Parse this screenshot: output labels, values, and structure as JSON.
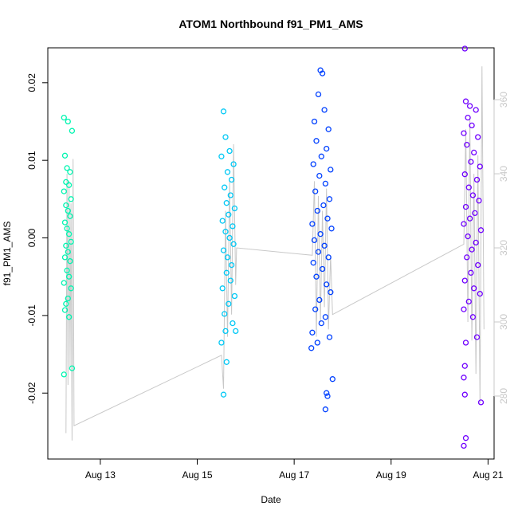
{
  "chart_data": {
    "type": "scatter",
    "title": "ATOM1 Northbound f91_PM1_AMS",
    "xlabel": "Date",
    "ylabel": "f91_PM1_AMS",
    "xlim": [
      "2012-08-11T22:00",
      "2012-08-21T03:00"
    ],
    "ylim": [
      -0.0285,
      0.0245
    ],
    "y2lim": [
      263,
      374
    ],
    "x_ticks": [
      {
        "label": "Aug 13",
        "date": "2012-08-13"
      },
      {
        "label": "Aug 15",
        "date": "2012-08-15"
      },
      {
        "label": "Aug 17",
        "date": "2012-08-17"
      },
      {
        "label": "Aug 19",
        "date": "2012-08-19"
      },
      {
        "label": "Aug 21",
        "date": "2012-08-21"
      }
    ],
    "y_ticks": [
      -0.02,
      -0.01,
      0.0,
      0.01,
      0.02
    ],
    "y_tick_labels": [
      "-0.02",
      "-0.01",
      "0.00",
      "0.01",
      "0.02"
    ],
    "y2_ticks": [
      280,
      300,
      320,
      340,
      360
    ],
    "y2_tick_labels": [
      "280",
      "300",
      "320",
      "340",
      "360"
    ],
    "grid": false,
    "legend": "none",
    "series": [
      {
        "color": "#00f5b0",
        "points": [
          [
            "2012-08-12T06:00",
            0.0155
          ],
          [
            "2012-08-12T08:00",
            0.015
          ],
          [
            "2012-08-12T10:00",
            0.0138
          ],
          [
            "2012-08-12T06:30",
            0.0106
          ],
          [
            "2012-08-12T07:30",
            0.009
          ],
          [
            "2012-08-12T09:00",
            0.0085
          ],
          [
            "2012-08-12T07:00",
            0.0072
          ],
          [
            "2012-08-12T08:30",
            0.0068
          ],
          [
            "2012-08-12T06:00",
            0.006
          ],
          [
            "2012-08-12T09:30",
            0.005
          ],
          [
            "2012-08-12T07:00",
            0.0042
          ],
          [
            "2012-08-12T08:00",
            0.0035
          ],
          [
            "2012-08-12T09:00",
            0.0028
          ],
          [
            "2012-08-12T06:30",
            0.002
          ],
          [
            "2012-08-12T07:30",
            0.0012
          ],
          [
            "2012-08-12T08:30",
            0.0005
          ],
          [
            "2012-08-12T09:30",
            -0.0005
          ],
          [
            "2012-08-12T07:00",
            -0.001
          ],
          [
            "2012-08-12T08:00",
            -0.0018
          ],
          [
            "2012-08-12T06:30",
            -0.0025
          ],
          [
            "2012-08-12T09:00",
            -0.003
          ],
          [
            "2012-08-12T07:30",
            -0.0042
          ],
          [
            "2012-08-12T08:30",
            -0.005
          ],
          [
            "2012-08-12T06:00",
            -0.0058
          ],
          [
            "2012-08-12T09:30",
            -0.0065
          ],
          [
            "2012-08-12T08:00",
            -0.0078
          ],
          [
            "2012-08-12T07:00",
            -0.0085
          ],
          [
            "2012-08-12T06:30",
            -0.0093
          ],
          [
            "2012-08-12T08:30",
            -0.0102
          ],
          [
            "2012-08-12T06:00",
            -0.0176
          ],
          [
            "2012-08-12T10:00",
            -0.0168
          ]
        ]
      },
      {
        "color": "#00c8f5",
        "points": [
          [
            "2012-08-15T13:00",
            0.0163
          ],
          [
            "2012-08-15T14:00",
            0.013
          ],
          [
            "2012-08-15T16:00",
            0.0112
          ],
          [
            "2012-08-15T12:00",
            0.0105
          ],
          [
            "2012-08-15T18:00",
            0.0095
          ],
          [
            "2012-08-15T15:00",
            0.0085
          ],
          [
            "2012-08-15T17:00",
            0.0075
          ],
          [
            "2012-08-15T13:30",
            0.0065
          ],
          [
            "2012-08-15T16:30",
            0.0055
          ],
          [
            "2012-08-15T14:30",
            0.0045
          ],
          [
            "2012-08-15T18:30",
            0.0038
          ],
          [
            "2012-08-15T15:30",
            0.003
          ],
          [
            "2012-08-15T12:30",
            0.0022
          ],
          [
            "2012-08-15T17:30",
            0.0015
          ],
          [
            "2012-08-15T14:00",
            0.0008
          ],
          [
            "2012-08-15T16:00",
            0.0
          ],
          [
            "2012-08-15T18:00",
            -0.0008
          ],
          [
            "2012-08-15T13:00",
            -0.0016
          ],
          [
            "2012-08-15T15:00",
            -0.0025
          ],
          [
            "2012-08-15T17:00",
            -0.0035
          ],
          [
            "2012-08-15T14:30",
            -0.0045
          ],
          [
            "2012-08-15T16:30",
            -0.0055
          ],
          [
            "2012-08-15T12:30",
            -0.0065
          ],
          [
            "2012-08-15T18:30",
            -0.0075
          ],
          [
            "2012-08-15T15:30",
            -0.0085
          ],
          [
            "2012-08-15T13:30",
            -0.0098
          ],
          [
            "2012-08-15T17:30",
            -0.011
          ],
          [
            "2012-08-15T14:00",
            -0.012
          ],
          [
            "2012-08-15T12:00",
            -0.0135
          ],
          [
            "2012-08-15T14:30",
            -0.016
          ],
          [
            "2012-08-15T13:00",
            -0.0202
          ],
          [
            "2012-08-15T19:00",
            -0.012
          ]
        ]
      },
      {
        "color": "#0040ff",
        "points": [
          [
            "2012-08-17T13:00",
            0.0216
          ],
          [
            "2012-08-17T14:00",
            0.0212
          ],
          [
            "2012-08-17T12:00",
            0.0185
          ],
          [
            "2012-08-17T15:00",
            0.0165
          ],
          [
            "2012-08-17T10:00",
            0.015
          ],
          [
            "2012-08-17T17:00",
            0.014
          ],
          [
            "2012-08-17T11:00",
            0.0125
          ],
          [
            "2012-08-17T16:00",
            0.0115
          ],
          [
            "2012-08-17T13:30",
            0.0105
          ],
          [
            "2012-08-17T09:30",
            0.0095
          ],
          [
            "2012-08-17T18:00",
            0.0088
          ],
          [
            "2012-08-17T12:30",
            0.008
          ],
          [
            "2012-08-17T15:30",
            0.007
          ],
          [
            "2012-08-17T10:30",
            0.006
          ],
          [
            "2012-08-17T17:30",
            0.005
          ],
          [
            "2012-08-17T14:30",
            0.0042
          ],
          [
            "2012-08-17T11:30",
            0.0035
          ],
          [
            "2012-08-17T16:30",
            0.0025
          ],
          [
            "2012-08-17T09:00",
            0.0018
          ],
          [
            "2012-08-17T18:30",
            0.0012
          ],
          [
            "2012-08-17T13:00",
            0.0005
          ],
          [
            "2012-08-17T10:00",
            -0.0003
          ],
          [
            "2012-08-17T15:00",
            -0.001
          ],
          [
            "2012-08-17T12:00",
            -0.0018
          ],
          [
            "2012-08-17T17:00",
            -0.0025
          ],
          [
            "2012-08-17T09:30",
            -0.0032
          ],
          [
            "2012-08-17T14:00",
            -0.004
          ],
          [
            "2012-08-17T11:00",
            -0.005
          ],
          [
            "2012-08-17T16:00",
            -0.006
          ],
          [
            "2012-08-17T18:00",
            -0.007
          ],
          [
            "2012-08-17T12:30",
            -0.008
          ],
          [
            "2012-08-17T10:30",
            -0.0092
          ],
          [
            "2012-08-17T15:30",
            -0.0102
          ],
          [
            "2012-08-17T13:30",
            -0.011
          ],
          [
            "2012-08-17T09:00",
            -0.0122
          ],
          [
            "2012-08-17T11:30",
            -0.0135
          ],
          [
            "2012-08-17T17:30",
            -0.0128
          ],
          [
            "2012-08-17T08:30",
            -0.0142
          ],
          [
            "2012-08-17T19:00",
            -0.0182
          ],
          [
            "2012-08-17T16:00",
            -0.02
          ],
          [
            "2012-08-17T16:30",
            -0.0204
          ],
          [
            "2012-08-17T15:30",
            -0.0221
          ]
        ]
      },
      {
        "color": "#7000ff",
        "points": [
          [
            "2012-08-20T12:30",
            0.0244
          ],
          [
            "2012-08-20T13:00",
            0.0176
          ],
          [
            "2012-08-20T15:00",
            0.017
          ],
          [
            "2012-08-20T18:00",
            0.0165
          ],
          [
            "2012-08-20T14:00",
            0.0155
          ],
          [
            "2012-08-20T16:00",
            0.0145
          ],
          [
            "2012-08-20T12:00",
            0.0135
          ],
          [
            "2012-08-20T19:00",
            0.013
          ],
          [
            "2012-08-20T13:30",
            0.012
          ],
          [
            "2012-08-20T17:00",
            0.011
          ],
          [
            "2012-08-20T15:30",
            0.0098
          ],
          [
            "2012-08-20T20:00",
            0.0092
          ],
          [
            "2012-08-20T12:30",
            0.0082
          ],
          [
            "2012-08-20T18:30",
            0.0075
          ],
          [
            "2012-08-20T14:30",
            0.0065
          ],
          [
            "2012-08-20T16:30",
            0.0055
          ],
          [
            "2012-08-20T19:30",
            0.0048
          ],
          [
            "2012-08-20T13:00",
            0.004
          ],
          [
            "2012-08-20T17:30",
            0.0032
          ],
          [
            "2012-08-20T15:00",
            0.0025
          ],
          [
            "2012-08-20T12:00",
            0.0018
          ],
          [
            "2012-08-20T20:30",
            0.001
          ],
          [
            "2012-08-20T14:00",
            0.0002
          ],
          [
            "2012-08-20T18:00",
            -0.0006
          ],
          [
            "2012-08-20T16:00",
            -0.0015
          ],
          [
            "2012-08-20T13:30",
            -0.0025
          ],
          [
            "2012-08-20T19:00",
            -0.0035
          ],
          [
            "2012-08-20T15:30",
            -0.0045
          ],
          [
            "2012-08-20T12:30",
            -0.0055
          ],
          [
            "2012-08-20T17:00",
            -0.0065
          ],
          [
            "2012-08-20T20:00",
            -0.0072
          ],
          [
            "2012-08-20T14:30",
            -0.0082
          ],
          [
            "2012-08-20T12:00",
            -0.0092
          ],
          [
            "2012-08-20T16:30",
            -0.0102
          ],
          [
            "2012-08-20T13:00",
            -0.0135
          ],
          [
            "2012-08-20T18:30",
            -0.0128
          ],
          [
            "2012-08-20T12:30",
            -0.0165
          ],
          [
            "2012-08-20T12:00",
            -0.018
          ],
          [
            "2012-08-20T12:30",
            -0.0202
          ],
          [
            "2012-08-20T20:30",
            -0.0212
          ],
          [
            "2012-08-20T13:00",
            -0.0258
          ],
          [
            "2012-08-20T12:00",
            -0.0268
          ]
        ]
      }
    ],
    "trace": {
      "color": "#c8c8c8",
      "axis": "right",
      "points": [
        [
          "2012-08-12T07:00",
          270
        ],
        [
          "2012-08-12T07:30",
          340
        ],
        [
          "2012-08-12T08:00",
          283
        ],
        [
          "2012-08-12T08:30",
          338
        ],
        [
          "2012-08-12T09:00",
          288
        ],
        [
          "2012-08-12T09:30",
          332
        ],
        [
          "2012-08-12T10:00",
          268
        ],
        [
          "2012-08-12T10:30",
          344
        ],
        [
          "2012-08-12T11:00",
          272
        ],
        [
          "2012-08-15T12:00",
          291
        ],
        [
          "2012-08-15T13:00",
          282
        ],
        [
          "2012-08-15T14:00",
          330
        ],
        [
          "2012-08-15T15:00",
          296
        ],
        [
          "2012-08-15T16:00",
          338
        ],
        [
          "2012-08-15T17:00",
          302
        ],
        [
          "2012-08-15T18:00",
          348
        ],
        [
          "2012-08-15T19:00",
          310
        ],
        [
          "2012-08-15T19:30",
          320
        ],
        [
          "2012-08-17T09:00",
          318
        ],
        [
          "2012-08-17T10:00",
          338
        ],
        [
          "2012-08-17T11:00",
          296
        ],
        [
          "2012-08-17T12:00",
          334
        ],
        [
          "2012-08-17T13:00",
          300
        ],
        [
          "2012-08-17T14:00",
          330
        ],
        [
          "2012-08-17T15:00",
          304
        ],
        [
          "2012-08-17T16:00",
          336
        ],
        [
          "2012-08-17T17:00",
          298
        ],
        [
          "2012-08-17T18:00",
          318
        ],
        [
          "2012-08-17T19:00",
          302
        ],
        [
          "2012-08-20T12:00",
          321
        ],
        [
          "2012-08-20T13:00",
          352
        ],
        [
          "2012-08-20T14:00",
          300
        ],
        [
          "2012-08-20T15:00",
          355
        ],
        [
          "2012-08-20T16:00",
          295
        ],
        [
          "2012-08-20T17:00",
          340
        ],
        [
          "2012-08-20T18:00",
          286
        ],
        [
          "2012-08-20T19:00",
          345
        ],
        [
          "2012-08-20T20:00",
          278
        ],
        [
          "2012-08-20T21:00",
          369
        ],
        [
          "2012-08-20T22:00",
          298
        ]
      ]
    }
  }
}
